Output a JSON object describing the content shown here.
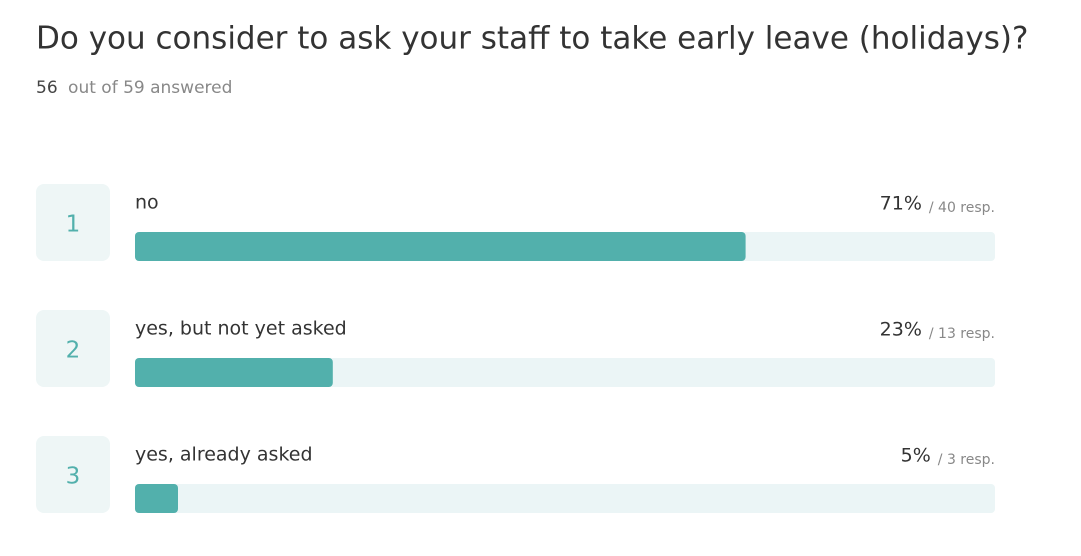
{
  "chart_data": {
    "type": "bar",
    "title": "Do you consider to ask your staff to take early leave (holidays)?",
    "subtitle": {
      "answered": 56,
      "text": "out of 59 answered"
    },
    "ranks": [
      1,
      2,
      3
    ],
    "categories": [
      "no",
      "yes, but not yet asked",
      "yes, already asked"
    ],
    "values": [
      71,
      23,
      5
    ],
    "value_labels": [
      "71%",
      "23%",
      "5%"
    ],
    "responses": [
      40,
      13,
      3
    ],
    "response_labels": [
      "/ 40 resp.",
      "/ 13 resp.",
      "/ 3 resp."
    ],
    "color": "#52b0ac",
    "xlim": [
      0,
      100
    ]
  }
}
